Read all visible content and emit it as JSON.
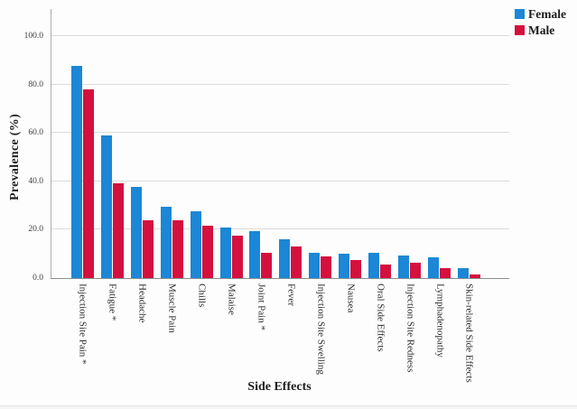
{
  "chart_data": {
    "type": "bar",
    "title": "",
    "xlabel": "Side Effects",
    "ylabel": "Prevalence  (%)",
    "ylim": [
      0,
      111
    ],
    "grid": true,
    "legend_position": "top-right",
    "yticks": [
      0,
      20,
      40,
      60,
      80,
      100
    ],
    "ytick_labels": [
      "0.0",
      "20.0",
      "40.0",
      "60.0",
      "80.0",
      "100.0"
    ],
    "categories": [
      "Injection Site Pain *",
      "Fatigue *",
      "Headache",
      "Muscle Pain",
      "Chills",
      "Malaise",
      "Joint Pain *",
      "Fever",
      "Injection Site Swelling",
      "Nausea",
      "Oral Side Effects",
      "Injection Site Redness",
      "Lymphadenopathy",
      "Skin-related Side Effects"
    ],
    "series": [
      {
        "name": "Female",
        "color": "#1B87D6",
        "values": [
          87.5,
          59,
          37.5,
          29.5,
          27.5,
          21,
          19.5,
          16,
          10.5,
          10,
          10.5,
          9.5,
          8.5,
          4
        ]
      },
      {
        "name": "Male",
        "color": "#D4103F",
        "values": [
          78,
          39,
          24,
          24,
          21.5,
          17.5,
          10.5,
          13,
          9,
          7.5,
          5.5,
          6.5,
          4,
          1.5
        ]
      }
    ]
  },
  "style": {
    "gridline_color": "#dbdbdb",
    "axis_color": "#9a9a9a",
    "background": "#fdfdfd"
  }
}
